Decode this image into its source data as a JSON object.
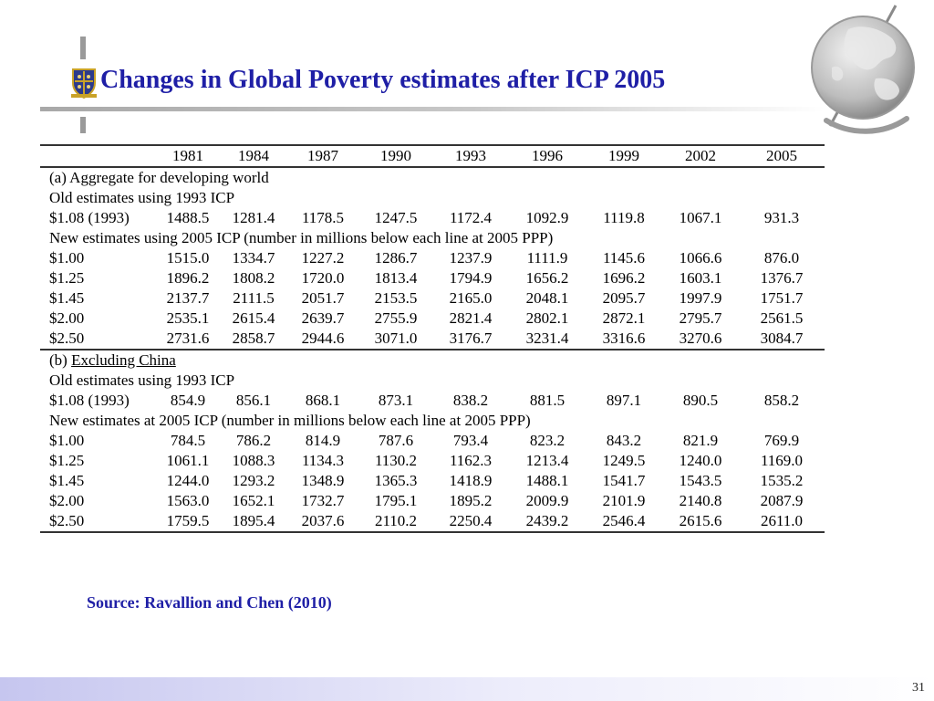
{
  "slide": {
    "title": "Changes in Global Poverty estimates after ICP 2005",
    "source": "Source: Ravallion and Chen (2010)",
    "page_number": "31"
  },
  "table": {
    "years": [
      "1981",
      "1984",
      "1987",
      "1990",
      "1993",
      "1996",
      "1999",
      "2002",
      "2005"
    ],
    "section_a": {
      "heading": "(a) Aggregate for developing world",
      "old_label": "Old estimates using 1993 ICP",
      "old_rows": [
        {
          "label": "$1.08 (1993)",
          "values": [
            "1488.5",
            "1281.4",
            "1178.5",
            "1247.5",
            "1172.4",
            "1092.9",
            "1119.8",
            "1067.1",
            "931.3"
          ]
        }
      ],
      "new_label": "New estimates using 2005 ICP (number in millions below each line at 2005 PPP)",
      "new_rows": [
        {
          "label": "$1.00",
          "values": [
            "1515.0",
            "1334.7",
            "1227.2",
            "1286.7",
            "1237.9",
            "1111.9",
            "1145.6",
            "1066.6",
            "876.0"
          ]
        },
        {
          "label": "$1.25",
          "values": [
            "1896.2",
            "1808.2",
            "1720.0",
            "1813.4",
            "1794.9",
            "1656.2",
            "1696.2",
            "1603.1",
            "1376.7"
          ]
        },
        {
          "label": "$1.45",
          "values": [
            "2137.7",
            "2111.5",
            "2051.7",
            "2153.5",
            "2165.0",
            "2048.1",
            "2095.7",
            "1997.9",
            "1751.7"
          ]
        },
        {
          "label": "$2.00",
          "values": [
            "2535.1",
            "2615.4",
            "2639.7",
            "2755.9",
            "2821.4",
            "2802.1",
            "2872.1",
            "2795.7",
            "2561.5"
          ]
        },
        {
          "label": "$2.50",
          "values": [
            "2731.6",
            "2858.7",
            "2944.6",
            "3071.0",
            "3176.7",
            "3231.4",
            "3316.6",
            "3270.6",
            "3084.7"
          ]
        }
      ]
    },
    "section_b": {
      "heading_prefix": "(b) ",
      "heading_underlined": "Excluding China",
      "old_label": "Old estimates using 1993 ICP",
      "old_rows": [
        {
          "label": "$1.08 (1993)",
          "values": [
            "854.9",
            "856.1",
            "868.1",
            "873.1",
            "838.2",
            "881.5",
            "897.1",
            "890.5",
            "858.2"
          ]
        }
      ],
      "new_label": "New estimates at 2005 ICP (number in millions below each line at 2005 PPP)",
      "new_rows": [
        {
          "label": "$1.00",
          "values": [
            "784.5",
            "786.2",
            "814.9",
            "787.6",
            "793.4",
            "823.2",
            "843.2",
            "821.9",
            "769.9"
          ]
        },
        {
          "label": "$1.25",
          "values": [
            "1061.1",
            "1088.3",
            "1134.3",
            "1130.2",
            "1162.3",
            "1213.4",
            "1249.5",
            "1240.0",
            "1169.0"
          ]
        },
        {
          "label": "$1.45",
          "values": [
            "1244.0",
            "1293.2",
            "1348.9",
            "1365.3",
            "1418.9",
            "1488.1",
            "1541.7",
            "1543.5",
            "1535.2"
          ]
        },
        {
          "label": "$2.00",
          "values": [
            "1563.0",
            "1652.1",
            "1732.7",
            "1795.1",
            "1895.2",
            "2009.9",
            "2101.9",
            "2140.8",
            "2087.9"
          ]
        },
        {
          "label": "$2.50",
          "values": [
            "1759.5",
            "1895.4",
            "2037.6",
            "2110.2",
            "2250.4",
            "2439.2",
            "2546.4",
            "2615.6",
            "2611.0"
          ]
        }
      ]
    }
  },
  "icons": {
    "logo": "university-crest-icon",
    "globe": "globe-icon"
  },
  "colors": {
    "title": "#1f1fa6",
    "source": "#1f1fa6",
    "footer": "#c6c6ef"
  }
}
